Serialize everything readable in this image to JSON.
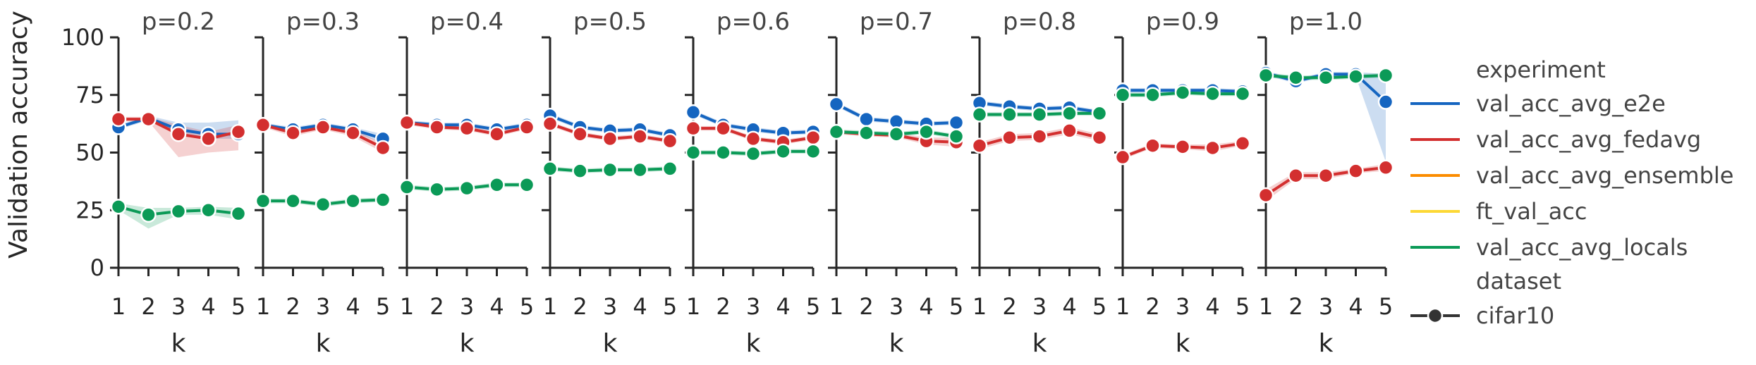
{
  "chart_data": {
    "type": "line",
    "ylabel": "Validation accuracy",
    "xlabel": "k",
    "x": [
      1,
      2,
      3,
      4,
      5
    ],
    "ylim": [
      0,
      100
    ],
    "yticks": [
      0,
      25,
      50,
      75,
      100
    ],
    "grid": false,
    "legend_position": "right",
    "legend": {
      "title": "experiment",
      "entries": [
        {
          "name": "val_acc_avg_e2e",
          "color": "#1565c0"
        },
        {
          "name": "val_acc_avg_fedavg",
          "color": "#d32f2f"
        },
        {
          "name": "val_acc_avg_ensemble",
          "color": "#fb8c00"
        },
        {
          "name": "ft_val_acc",
          "color": "#fdd835"
        },
        {
          "name": "val_acc_avg_locals",
          "color": "#0b9a57"
        }
      ],
      "style_title": "dataset",
      "style_entries": [
        {
          "name": "cifar10",
          "color": "#333333"
        }
      ]
    },
    "panels": [
      {
        "title": "p=0.2",
        "series": [
          {
            "name": "val_acc_avg_e2e",
            "values": [
              61,
              65,
              60,
              58,
              58
            ],
            "lower": [
              60,
              64,
              58,
              56,
              56
            ],
            "upper": [
              62,
              66,
              63,
              63,
              64
            ]
          },
          {
            "name": "val_acc_avg_fedavg",
            "values": [
              64.5,
              64.5,
              58,
              56,
              59
            ],
            "lower": [
              63.5,
              63.5,
              48,
              50,
              51
            ],
            "upper": [
              65.5,
              65.5,
              62,
              59,
              62
            ]
          },
          {
            "name": "val_acc_avg_locals",
            "values": [
              26.5,
              23,
              24.5,
              25,
              23.5
            ],
            "lower": [
              25,
              17,
              23,
              23,
              21
            ],
            "upper": [
              28,
              26,
              26,
              26.5,
              26
            ]
          }
        ]
      },
      {
        "title": "p=0.3",
        "series": [
          {
            "name": "val_acc_avg_e2e",
            "values": [
              62,
              60,
              62,
              60,
              56
            ],
            "lower": [
              61,
              59,
              61,
              59,
              54
            ],
            "upper": [
              63,
              61,
              63,
              61,
              58
            ]
          },
          {
            "name": "val_acc_avg_fedavg",
            "values": [
              62,
              58.5,
              61,
              58.5,
              52
            ],
            "lower": [
              61,
              57,
              60,
              57,
              50
            ],
            "upper": [
              63,
              60,
              62,
              60,
              54
            ]
          },
          {
            "name": "val_acc_avg_locals",
            "values": [
              29,
              29,
              27.5,
              29,
              29.5
            ],
            "lower": [
              28,
              28,
              26.5,
              28,
              28.5
            ],
            "upper": [
              30,
              30,
              28.5,
              30,
              30.5
            ]
          }
        ]
      },
      {
        "title": "p=0.4",
        "series": [
          {
            "name": "val_acc_avg_e2e",
            "values": [
              63,
              62,
              62,
              60,
              62
            ],
            "lower": [
              62,
              61,
              61,
              59,
              61
            ],
            "upper": [
              64,
              63,
              63,
              61,
              63
            ]
          },
          {
            "name": "val_acc_avg_fedavg",
            "values": [
              63,
              61,
              60.5,
              58,
              61
            ],
            "lower": [
              62,
              60,
              59.5,
              57,
              60
            ],
            "upper": [
              64,
              62,
              61.5,
              59,
              62
            ]
          },
          {
            "name": "val_acc_avg_locals",
            "values": [
              35,
              34,
              34.5,
              36,
              36
            ],
            "lower": [
              34,
              33,
              33.5,
              35,
              35
            ],
            "upper": [
              36,
              35,
              35.5,
              37,
              37
            ]
          }
        ]
      },
      {
        "title": "p=0.5",
        "series": [
          {
            "name": "val_acc_avg_e2e",
            "values": [
              66,
              61,
              59.5,
              60,
              57.5
            ],
            "lower": [
              65,
              60,
              58.5,
              59,
              56.5
            ],
            "upper": [
              67,
              62,
              60.5,
              61,
              58.5
            ]
          },
          {
            "name": "val_acc_avg_fedavg",
            "values": [
              62.5,
              58,
              56,
              57,
              55
            ],
            "lower": [
              61.5,
              57,
              55,
              56,
              54
            ],
            "upper": [
              63.5,
              59,
              57,
              58,
              56
            ]
          },
          {
            "name": "val_acc_avg_locals",
            "values": [
              43,
              42,
              42.5,
              42.5,
              43
            ],
            "lower": [
              42,
              41,
              41.5,
              41.5,
              42
            ],
            "upper": [
              44,
              43,
              43.5,
              43.5,
              44
            ]
          }
        ]
      },
      {
        "title": "p=0.6",
        "series": [
          {
            "name": "val_acc_avg_e2e",
            "values": [
              67.5,
              62,
              60,
              58.5,
              59
            ],
            "lower": [
              66.5,
              61,
              59,
              57.5,
              58
            ],
            "upper": [
              68.5,
              63,
              61,
              59.5,
              60
            ]
          },
          {
            "name": "val_acc_avg_fedavg",
            "values": [
              60.5,
              60.5,
              56,
              54.5,
              56.5
            ],
            "lower": [
              59.5,
              59.5,
              55,
              53.5,
              55.5
            ],
            "upper": [
              61.5,
              61.5,
              57,
              55.5,
              57.5
            ]
          },
          {
            "name": "val_acc_avg_locals",
            "values": [
              50,
              50,
              49.5,
              50.5,
              50.5
            ],
            "lower": [
              49,
              49,
              48.5,
              49.5,
              49.5
            ],
            "upper": [
              51,
              51,
              50.5,
              51.5,
              51.5
            ]
          }
        ]
      },
      {
        "title": "p=0.7",
        "series": [
          {
            "name": "val_acc_avg_e2e",
            "values": [
              71,
              64.5,
              63.5,
              62.5,
              63
            ],
            "lower": [
              70,
              63.5,
              62.5,
              61.5,
              62
            ],
            "upper": [
              72,
              65.5,
              64.5,
              63.5,
              64
            ]
          },
          {
            "name": "val_acc_avg_fedavg",
            "values": [
              59,
              58,
              57.5,
              55,
              54.5
            ],
            "lower": [
              58,
              57,
              56.5,
              53.5,
              52.5
            ],
            "upper": [
              60,
              59,
              58.5,
              56.5,
              56.5
            ]
          },
          {
            "name": "val_acc_avg_locals",
            "values": [
              59,
              58.5,
              58,
              59,
              57
            ],
            "lower": [
              58,
              57.5,
              57,
              58,
              56
            ],
            "upper": [
              60,
              59.5,
              59,
              60,
              58
            ]
          }
        ]
      },
      {
        "title": "p=0.8",
        "series": [
          {
            "name": "val_acc_avg_e2e",
            "values": [
              71.5,
              70,
              69,
              69.5,
              67.5
            ],
            "lower": [
              70.5,
              69,
              68,
              68.5,
              66.5
            ],
            "upper": [
              72.5,
              71,
              70,
              70.5,
              68.5
            ]
          },
          {
            "name": "val_acc_avg_fedavg",
            "values": [
              53,
              56.5,
              57,
              59.5,
              56.5
            ],
            "lower": [
              51.5,
              55,
              55.5,
              58,
              55
            ],
            "upper": [
              54.5,
              58,
              58.5,
              61,
              58
            ]
          },
          {
            "name": "val_acc_avg_locals",
            "values": [
              66.5,
              66.5,
              66.5,
              67,
              67
            ],
            "lower": [
              65.5,
              65.5,
              65.5,
              66,
              66
            ],
            "upper": [
              67.5,
              67.5,
              67.5,
              68,
              68
            ]
          }
        ]
      },
      {
        "title": "p=0.9",
        "series": [
          {
            "name": "val_acc_avg_e2e",
            "values": [
              77,
              77,
              77,
              77,
              76.5
            ],
            "lower": [
              76,
              76,
              76,
              76,
              75.5
            ],
            "upper": [
              78,
              78,
              78,
              78,
              77.5
            ]
          },
          {
            "name": "val_acc_avg_fedavg",
            "values": [
              48,
              53,
              52.5,
              52,
              54
            ],
            "lower": [
              47,
              52,
              51.5,
              50.5,
              53
            ],
            "upper": [
              49,
              54,
              53.5,
              53.5,
              55
            ]
          },
          {
            "name": "val_acc_avg_locals",
            "values": [
              75,
              75,
              76,
              75.5,
              75.5
            ],
            "lower": [
              74,
              74,
              75,
              74.5,
              74.5
            ],
            "upper": [
              76,
              76,
              77,
              76.5,
              76.5
            ]
          }
        ]
      },
      {
        "title": "p=1.0",
        "series": [
          {
            "name": "val_acc_avg_e2e",
            "values": [
              84.5,
              81,
              84,
              84,
              72
            ],
            "lower": [
              83.5,
              80,
              83,
              83,
              46
            ],
            "upper": [
              85.5,
              82,
              85,
              85,
              84
            ]
          },
          {
            "name": "val_acc_avg_fedavg",
            "values": [
              31.5,
              40,
              40,
              42,
              43.5
            ],
            "lower": [
              29,
              38.5,
              38.5,
              41,
              42
            ],
            "upper": [
              34,
              41.5,
              41.5,
              43,
              45
            ]
          },
          {
            "name": "val_acc_avg_locals",
            "values": [
              83.5,
              82.5,
              82.5,
              83,
              83.5
            ],
            "lower": [
              82.5,
              81.5,
              81.5,
              82,
              82.5
            ],
            "upper": [
              84.5,
              83.5,
              83.5,
              84,
              84.5
            ]
          }
        ]
      }
    ]
  }
}
